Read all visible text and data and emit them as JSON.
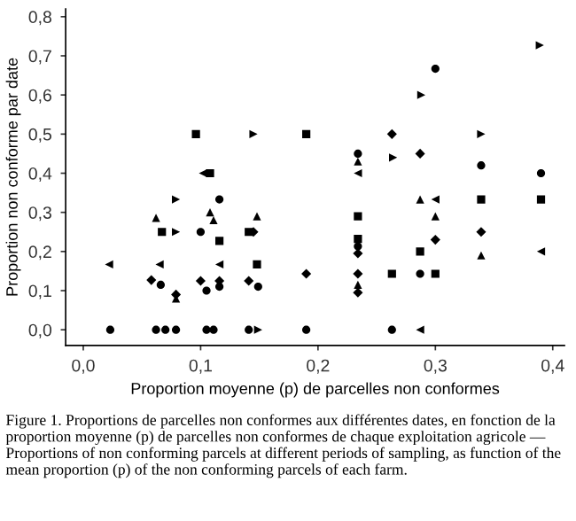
{
  "chart_data": {
    "type": "scatter",
    "xlabel": "Proportion moyenne (p) de parcelles non conformes",
    "ylabel": "Proportion non conforme par date",
    "xlim": [
      -0.015,
      0.41
    ],
    "ylim": [
      -0.04,
      0.82
    ],
    "xticks": [
      {
        "value": 0,
        "label": "0,0"
      },
      {
        "value": 0.1,
        "label": "0,1"
      },
      {
        "value": 0.2,
        "label": "0,2"
      },
      {
        "value": 0.3,
        "label": "0,3"
      },
      {
        "value": 0.4,
        "label": "0,4"
      }
    ],
    "yticks": [
      {
        "value": 0,
        "label": "0,0"
      },
      {
        "value": 0.1,
        "label": "0,1"
      },
      {
        "value": 0.2,
        "label": "0,2"
      },
      {
        "value": 0.3,
        "label": "0,3"
      },
      {
        "value": 0.4,
        "label": "0,4"
      },
      {
        "value": 0.5,
        "label": "0,5"
      },
      {
        "value": 0.6,
        "label": "0,6"
      },
      {
        "value": 0.7,
        "label": "0,7"
      },
      {
        "value": 0.8,
        "label": "0,8"
      }
    ],
    "grid": false,
    "legend": false,
    "series": [
      {
        "marker": "circle",
        "color": "#000000",
        "x": [
          0.023,
          0.062,
          0.079,
          0.1,
          0.105,
          0.111,
          0.116,
          0.116,
          0.141,
          0.149,
          0.19,
          0.234,
          0.263,
          0.287,
          0.3,
          0.339,
          0.39,
          0.066,
          0.07,
          0.105,
          0.234
        ],
        "values": [
          0,
          0,
          0,
          0.25,
          0,
          0,
          0.333,
          0.11,
          0,
          0.11,
          0,
          0.213,
          0,
          0.143,
          0.667,
          0.42,
          0.4,
          0.115,
          0,
          0.1,
          0.45
        ]
      },
      {
        "marker": "square",
        "color": "#000000",
        "x": [
          0.067,
          0.096,
          0.108,
          0.116,
          0.148,
          0.141,
          0.19,
          0.234,
          0.234,
          0.263,
          0.287,
          0.3,
          0.339,
          0.39
        ],
        "values": [
          0.25,
          0.5,
          0.4,
          0.227,
          0.167,
          0.25,
          0.5,
          0.29,
          0.232,
          0.143,
          0.2,
          0.143,
          0.333,
          0.333
        ]
      },
      {
        "marker": "triangle",
        "color": "#000000",
        "x": [
          0.062,
          0.079,
          0.108,
          0.111,
          0.148,
          0.234,
          0.234,
          0.287,
          0.3,
          0.339
        ],
        "values": [
          0.286,
          0.08,
          0.3,
          0.28,
          0.29,
          0.43,
          0.115,
          0.333,
          0.29,
          0.19
        ]
      },
      {
        "marker": "triangle_left",
        "color": "#000000",
        "x": [
          0.022,
          0.065,
          0.102,
          0.116,
          0.234,
          0.3,
          0.287,
          0.39
        ],
        "values": [
          0.167,
          0.167,
          0.4,
          0.167,
          0.4,
          0.333,
          0,
          0.2
        ]
      },
      {
        "marker": "triangle_right",
        "color": "#000000",
        "x": [
          0.079,
          0.079,
          0.145,
          0.149,
          0.264,
          0.288,
          0.339,
          0.389
        ],
        "values": [
          0.333,
          0.25,
          0.5,
          0,
          0.44,
          0.6,
          0.5,
          0.727
        ]
      },
      {
        "marker": "diamond",
        "color": "#000000",
        "x": [
          0.058,
          0.079,
          0.1,
          0.116,
          0.145,
          0.141,
          0.19,
          0.234,
          0.234,
          0.263,
          0.3,
          0.287,
          0.339,
          0.234
        ],
        "values": [
          0.127,
          0.09,
          0.125,
          0.125,
          0.25,
          0.125,
          0.143,
          0.143,
          0.095,
          0.5,
          0.23,
          0.45,
          0.25,
          0.195
        ]
      }
    ],
    "annotations": [
      "Figure 1. Proportions de parcelles non conformes aux différentes dates, en fonction de la proportion moyenne (p) de parcelles non conformes de chaque exploitation agricole — Proportions of non conforming parcels at different periods of sampling, as function of the mean proportion (p) of the non conforming parcels of each farm."
    ]
  }
}
